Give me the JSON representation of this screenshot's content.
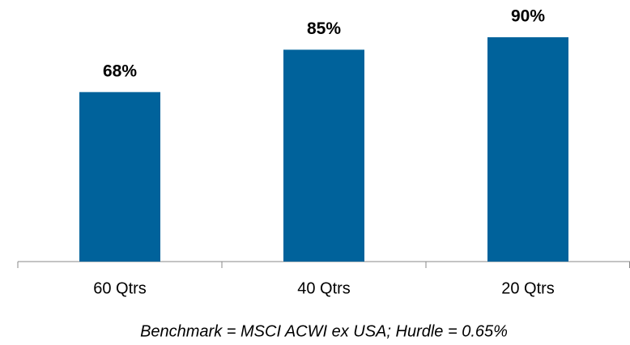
{
  "chart_data": {
    "type": "bar",
    "categories": [
      "60 Qtrs",
      "40 Qtrs",
      "20 Qtrs"
    ],
    "values": [
      68,
      85,
      90
    ],
    "value_labels": [
      "68%",
      "85%",
      "90%"
    ],
    "color": "#00629b",
    "annotation": "Benchmark = MSCI ACWI ex USA; Hurdle = 0.65%"
  }
}
